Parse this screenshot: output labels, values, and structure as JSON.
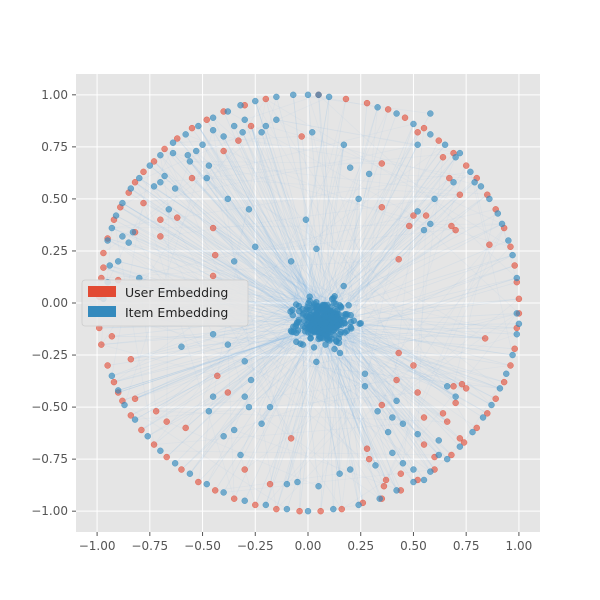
{
  "chart_data": {
    "type": "scatter",
    "title": "",
    "xlabel": "",
    "ylabel": "",
    "xlim": [
      -1.1,
      1.1
    ],
    "ylim": [
      -1.1,
      1.1
    ],
    "xticks": [
      -1.0,
      -0.75,
      -0.5,
      -0.25,
      0.0,
      0.25,
      0.5,
      0.75,
      1.0
    ],
    "yticks": [
      -1.0,
      -0.75,
      -0.5,
      -0.25,
      0.0,
      0.25,
      0.5,
      0.75,
      1.0
    ],
    "xtick_labels": [
      "−1.00",
      "−0.75",
      "−0.50",
      "−0.25",
      "0.00",
      "0.25",
      "0.50",
      "0.75",
      "1.00"
    ],
    "ytick_labels": [
      "−1.00",
      "−0.75",
      "−0.50",
      "−0.25",
      "0.00",
      "0.25",
      "0.50",
      "0.75",
      "1.00"
    ],
    "grid": true,
    "style": "ggplot",
    "legend_position": "center-left",
    "series": [
      {
        "name": "User Embedding",
        "color": "#E24A33",
        "note_points": "points on and near the unit circle",
        "points": [
          [
            -0.97,
            0.24
          ],
          [
            -0.95,
            0.31
          ],
          [
            -0.92,
            0.4
          ],
          [
            -0.89,
            0.46
          ],
          [
            -0.85,
            0.53
          ],
          [
            -0.82,
            0.58
          ],
          [
            -0.78,
            0.63
          ],
          [
            -0.73,
            0.68
          ],
          [
            -0.68,
            0.74
          ],
          [
            -0.62,
            0.79
          ],
          [
            -0.55,
            0.84
          ],
          [
            -0.48,
            0.88
          ],
          [
            -0.4,
            0.92
          ],
          [
            -0.3,
            0.95
          ],
          [
            -0.2,
            0.98
          ],
          [
            0.05,
            1.0
          ],
          [
            0.18,
            0.98
          ],
          [
            0.28,
            0.96
          ],
          [
            0.38,
            0.93
          ],
          [
            0.46,
            0.89
          ],
          [
            0.55,
            0.84
          ],
          [
            0.62,
            0.78
          ],
          [
            0.69,
            0.72
          ],
          [
            0.75,
            0.66
          ],
          [
            0.8,
            0.6
          ],
          [
            0.85,
            0.52
          ],
          [
            0.89,
            0.45
          ],
          [
            0.93,
            0.36
          ],
          [
            0.96,
            0.27
          ],
          [
            0.98,
            0.18
          ],
          [
            0.99,
            0.1
          ],
          [
            1.0,
            0.02
          ],
          [
            1.0,
            -0.05
          ],
          [
            0.99,
            -0.12
          ],
          [
            0.98,
            -0.22
          ],
          [
            0.96,
            -0.3
          ],
          [
            0.93,
            -0.38
          ],
          [
            0.89,
            -0.46
          ],
          [
            0.85,
            -0.53
          ],
          [
            0.8,
            -0.6
          ],
          [
            0.74,
            -0.67
          ],
          [
            0.68,
            -0.73
          ],
          [
            0.6,
            -0.8
          ],
          [
            0.52,
            -0.85
          ],
          [
            0.44,
            -0.9
          ],
          [
            0.35,
            -0.94
          ],
          [
            0.26,
            -0.96
          ],
          [
            0.16,
            -0.99
          ],
          [
            0.06,
            -1.0
          ],
          [
            -0.04,
            -1.0
          ],
          [
            -0.15,
            -0.99
          ],
          [
            -0.25,
            -0.97
          ],
          [
            -0.35,
            -0.94
          ],
          [
            -0.44,
            -0.9
          ],
          [
            -0.52,
            -0.86
          ],
          [
            -0.6,
            -0.8
          ],
          [
            -0.67,
            -0.74
          ],
          [
            -0.73,
            -0.68
          ],
          [
            -0.79,
            -0.61
          ],
          [
            -0.84,
            -0.54
          ],
          [
            -0.88,
            -0.47
          ],
          [
            -0.92,
            -0.38
          ],
          [
            -0.95,
            -0.3
          ],
          [
            -0.98,
            -0.2
          ],
          [
            -0.99,
            -0.12
          ],
          [
            -0.99,
            -0.05
          ],
          [
            -0.99,
            0.03
          ],
          [
            -0.98,
            0.12
          ],
          [
            -0.97,
            0.17
          ],
          [
            -0.27,
            0.85
          ],
          [
            -0.33,
            0.78
          ],
          [
            -0.4,
            0.73
          ],
          [
            -0.55,
            0.6
          ],
          [
            -0.78,
            0.48
          ],
          [
            -0.7,
            0.4
          ],
          [
            -0.62,
            0.41
          ],
          [
            -0.82,
            0.34
          ],
          [
            -0.7,
            0.32
          ],
          [
            -0.45,
            0.36
          ],
          [
            -0.44,
            0.23
          ],
          [
            -0.45,
            0.13
          ],
          [
            -0.9,
            0.11
          ],
          [
            -0.93,
            -0.16
          ],
          [
            -0.84,
            -0.27
          ],
          [
            -0.9,
            -0.43
          ],
          [
            -0.82,
            -0.46
          ],
          [
            -0.72,
            -0.52
          ],
          [
            -0.67,
            -0.57
          ],
          [
            -0.58,
            -0.6
          ],
          [
            -0.43,
            -0.35
          ],
          [
            -0.38,
            -0.43
          ],
          [
            -0.3,
            -0.8
          ],
          [
            -0.18,
            -0.87
          ],
          [
            -0.08,
            -0.65
          ],
          [
            -0.03,
            0.8
          ],
          [
            0.35,
            0.67
          ],
          [
            0.52,
            0.82
          ],
          [
            0.64,
            0.7
          ],
          [
            0.67,
            0.6
          ],
          [
            0.72,
            0.52
          ],
          [
            0.68,
            0.37
          ],
          [
            0.7,
            0.35
          ],
          [
            0.56,
            0.42
          ],
          [
            0.5,
            0.42
          ],
          [
            0.48,
            0.37
          ],
          [
            0.35,
            0.46
          ],
          [
            0.43,
            0.21
          ],
          [
            0.86,
            0.28
          ],
          [
            0.84,
            -0.17
          ],
          [
            0.43,
            -0.24
          ],
          [
            0.5,
            -0.3
          ],
          [
            0.42,
            -0.37
          ],
          [
            0.52,
            -0.43
          ],
          [
            0.35,
            -0.49
          ],
          [
            0.55,
            -0.55
          ],
          [
            0.64,
            -0.53
          ],
          [
            0.69,
            -0.4
          ],
          [
            0.73,
            -0.39
          ],
          [
            0.75,
            -0.41
          ],
          [
            0.7,
            -0.48
          ],
          [
            0.66,
            -0.57
          ],
          [
            0.72,
            -0.65
          ],
          [
            0.6,
            -0.74
          ],
          [
            0.55,
            -0.68
          ],
          [
            0.44,
            -0.82
          ],
          [
            0.37,
            -0.85
          ],
          [
            0.36,
            -0.88
          ],
          [
            0.29,
            -0.75
          ],
          [
            0.28,
            -0.7
          ]
        ]
      },
      {
        "name": "Item Embedding",
        "color": "#348ABD",
        "note_points": "points on the circle, scattered, and a dense cluster near (0.07, -0.09)",
        "points": [
          [
            -0.95,
            0.3
          ],
          [
            -0.93,
            0.36
          ],
          [
            -0.91,
            0.42
          ],
          [
            -0.88,
            0.48
          ],
          [
            -0.84,
            0.55
          ],
          [
            -0.8,
            0.6
          ],
          [
            -0.75,
            0.66
          ],
          [
            -0.7,
            0.71
          ],
          [
            -0.64,
            0.77
          ],
          [
            -0.58,
            0.81
          ],
          [
            -0.52,
            0.85
          ],
          [
            -0.45,
            0.89
          ],
          [
            -0.38,
            0.92
          ],
          [
            -0.32,
            0.95
          ],
          [
            -0.25,
            0.97
          ],
          [
            -0.15,
            0.99
          ],
          [
            -0.07,
            1.0
          ],
          [
            0.0,
            1.0
          ],
          [
            0.05,
            1.0
          ],
          [
            0.1,
            0.99
          ],
          [
            0.33,
            0.94
          ],
          [
            0.42,
            0.91
          ],
          [
            0.5,
            0.86
          ],
          [
            0.58,
            0.81
          ],
          [
            0.65,
            0.76
          ],
          [
            0.7,
            0.7
          ],
          [
            0.77,
            0.63
          ],
          [
            0.82,
            0.56
          ],
          [
            0.86,
            0.5
          ],
          [
            0.9,
            0.43
          ],
          [
            0.92,
            0.38
          ],
          [
            0.95,
            0.3
          ],
          [
            0.97,
            0.23
          ],
          [
            0.99,
            0.12
          ],
          [
            0.99,
            -0.05
          ],
          [
            1.0,
            -0.1
          ],
          [
            0.99,
            -0.15
          ],
          [
            0.97,
            -0.25
          ],
          [
            0.94,
            -0.34
          ],
          [
            0.91,
            -0.41
          ],
          [
            0.87,
            -0.49
          ],
          [
            0.83,
            -0.55
          ],
          [
            0.78,
            -0.62
          ],
          [
            0.72,
            -0.69
          ],
          [
            0.66,
            -0.75
          ],
          [
            0.58,
            -0.81
          ],
          [
            0.5,
            -0.86
          ],
          [
            0.42,
            -0.9
          ],
          [
            0.34,
            -0.94
          ],
          [
            0.24,
            -0.97
          ],
          [
            0.12,
            -0.99
          ],
          [
            0.0,
            -1.0
          ],
          [
            -0.1,
            -0.99
          ],
          [
            -0.2,
            -0.97
          ],
          [
            -0.3,
            -0.95
          ],
          [
            -0.4,
            -0.91
          ],
          [
            -0.48,
            -0.87
          ],
          [
            -0.56,
            -0.82
          ],
          [
            -0.63,
            -0.77
          ],
          [
            -0.7,
            -0.71
          ],
          [
            -0.76,
            -0.64
          ],
          [
            -0.82,
            -0.56
          ],
          [
            -0.87,
            -0.49
          ],
          [
            -0.9,
            -0.42
          ],
          [
            -0.93,
            -0.35
          ],
          [
            -0.95,
            0.1
          ],
          [
            -0.97,
            0.02
          ],
          [
            -0.83,
            0.34
          ],
          [
            -0.85,
            0.29
          ],
          [
            -0.88,
            0.32
          ],
          [
            -0.68,
            0.61
          ],
          [
            -0.7,
            0.58
          ],
          [
            -0.73,
            0.56
          ],
          [
            -0.63,
            0.55
          ],
          [
            -0.66,
            0.45
          ],
          [
            -0.56,
            0.68
          ],
          [
            -0.48,
            0.6
          ],
          [
            -0.45,
            0.83
          ],
          [
            -0.4,
            0.8
          ],
          [
            -0.31,
            0.82
          ],
          [
            -0.22,
            0.82
          ],
          [
            -0.2,
            0.85
          ],
          [
            -0.35,
            0.85
          ],
          [
            -0.15,
            0.88
          ],
          [
            -0.3,
            0.88
          ],
          [
            -0.57,
            0.71
          ],
          [
            -0.64,
            0.72
          ],
          [
            -0.53,
            0.73
          ],
          [
            -0.5,
            0.76
          ],
          [
            -0.47,
            0.66
          ],
          [
            -0.38,
            0.5
          ],
          [
            -0.28,
            0.45
          ],
          [
            -0.25,
            0.27
          ],
          [
            -0.35,
            0.2
          ],
          [
            -0.08,
            0.2
          ],
          [
            -0.01,
            0.4
          ],
          [
            0.04,
            0.26
          ],
          [
            0.02,
            0.82
          ],
          [
            0.17,
            0.76
          ],
          [
            0.2,
            0.65
          ],
          [
            0.24,
            0.5
          ],
          [
            0.29,
            0.62
          ],
          [
            0.52,
            0.76
          ],
          [
            0.58,
            0.91
          ],
          [
            0.72,
            0.72
          ],
          [
            0.79,
            0.58
          ],
          [
            0.69,
            0.58
          ],
          [
            0.6,
            0.5
          ],
          [
            0.52,
            0.44
          ],
          [
            0.58,
            0.38
          ],
          [
            0.55,
            0.35
          ],
          [
            -0.94,
            0.18
          ],
          [
            -0.9,
            0.2
          ],
          [
            -0.8,
            0.12
          ],
          [
            -0.6,
            -0.21
          ],
          [
            -0.45,
            -0.15
          ],
          [
            -0.38,
            -0.2
          ],
          [
            -0.3,
            -0.28
          ],
          [
            -0.27,
            -0.37
          ],
          [
            -0.35,
            -0.61
          ],
          [
            -0.32,
            -0.73
          ],
          [
            -0.4,
            -0.64
          ],
          [
            -0.47,
            -0.52
          ],
          [
            -0.45,
            -0.45
          ],
          [
            -0.3,
            -0.45
          ],
          [
            -0.28,
            -0.5
          ],
          [
            -0.18,
            -0.5
          ],
          [
            -0.22,
            -0.58
          ],
          [
            0.27,
            -0.34
          ],
          [
            0.27,
            -0.4
          ],
          [
            0.33,
            -0.52
          ],
          [
            0.38,
            -0.62
          ],
          [
            0.42,
            -0.47
          ],
          [
            0.45,
            -0.58
          ],
          [
            0.52,
            -0.63
          ],
          [
            0.4,
            -0.72
          ],
          [
            0.45,
            -0.77
          ],
          [
            0.32,
            -0.78
          ],
          [
            0.2,
            -0.8
          ],
          [
            0.15,
            -0.82
          ],
          [
            0.05,
            -0.88
          ],
          [
            -0.05,
            -0.86
          ],
          [
            -0.1,
            -0.87
          ],
          [
            0.4,
            -0.55
          ],
          [
            0.55,
            -0.85
          ],
          [
            0.66,
            -0.4
          ],
          [
            0.7,
            -0.45
          ],
          [
            0.62,
            -0.66
          ],
          [
            0.62,
            -0.73
          ],
          [
            0.5,
            -0.8
          ]
        ],
        "cluster": {
          "center": [
            0.07,
            -0.09
          ],
          "spread": [
            0.06,
            0.05
          ],
          "count": 300
        }
      }
    ],
    "background_lines": {
      "color": "#7FB6E6",
      "description": "faint light-blue line segments connecting the central cluster to points on the circle"
    }
  },
  "legend": {
    "title": "",
    "entries": [
      {
        "label": "User Embedding",
        "color": "#E24A33"
      },
      {
        "label": "Item Embedding",
        "color": "#348ABD"
      }
    ]
  },
  "colors": {
    "plot_background": "#E5E5E5",
    "grid": "#FFFFFF",
    "tick_text": "#555555"
  }
}
